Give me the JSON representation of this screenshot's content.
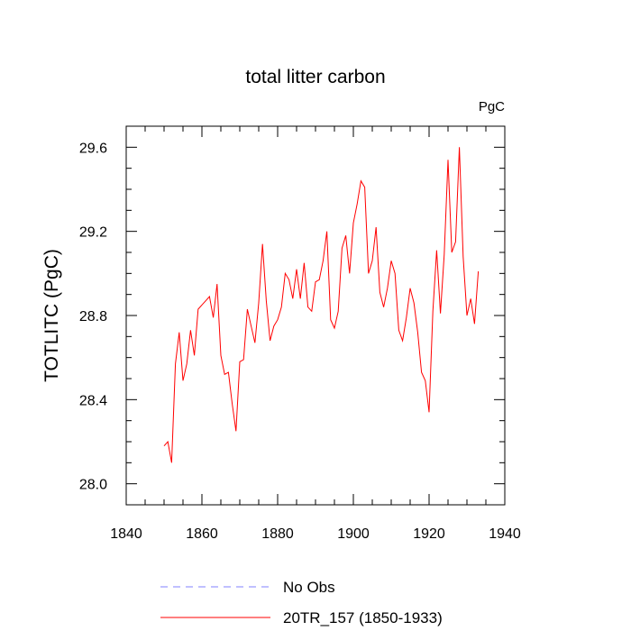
{
  "chart_data": {
    "type": "line",
    "title": "total litter carbon",
    "units_label": "PgC",
    "xlabel": "",
    "ylabel": "TOTLITC  (PgC)",
    "xlim": [
      1840,
      1940
    ],
    "ylim": [
      27.9,
      29.7
    ],
    "xticks": [
      1840,
      1860,
      1880,
      1900,
      1920,
      1940
    ],
    "xtick_labels": [
      "1840",
      "1860",
      "1880",
      "1900",
      "1920",
      "1940"
    ],
    "yticks": [
      28.0,
      28.4,
      28.8,
      29.2,
      29.6
    ],
    "ytick_labels": [
      "28.0",
      "28.4",
      "28.8",
      "29.2",
      "29.6"
    ],
    "grid": false,
    "legend_position": "bottom",
    "series": [
      {
        "name": "20TR_157 (1850-1933)",
        "color": "#ff0000",
        "style": "solid",
        "x": [
          1850,
          1851,
          1852,
          1853,
          1854,
          1855,
          1856,
          1857,
          1858,
          1859,
          1860,
          1861,
          1862,
          1863,
          1864,
          1865,
          1866,
          1867,
          1868,
          1869,
          1870,
          1871,
          1872,
          1873,
          1874,
          1875,
          1876,
          1877,
          1878,
          1879,
          1880,
          1881,
          1882,
          1883,
          1884,
          1885,
          1886,
          1887,
          1888,
          1889,
          1890,
          1891,
          1892,
          1893,
          1894,
          1895,
          1896,
          1897,
          1898,
          1899,
          1900,
          1901,
          1902,
          1903,
          1904,
          1905,
          1906,
          1907,
          1908,
          1909,
          1910,
          1911,
          1912,
          1913,
          1914,
          1915,
          1916,
          1917,
          1918,
          1919,
          1920,
          1921,
          1922,
          1923,
          1924,
          1925,
          1926,
          1927,
          1928,
          1929,
          1930,
          1931,
          1932,
          1933
        ],
        "values": [
          28.18,
          28.2,
          28.1,
          28.57,
          28.72,
          28.49,
          28.57,
          28.73,
          28.61,
          28.83,
          28.85,
          28.87,
          28.89,
          28.79,
          28.95,
          28.61,
          28.52,
          28.53,
          28.38,
          28.25,
          28.58,
          28.59,
          28.83,
          28.75,
          28.67,
          28.86,
          29.14,
          28.87,
          28.68,
          28.75,
          28.78,
          28.84,
          29.0,
          28.97,
          28.88,
          29.02,
          28.88,
          29.05,
          28.84,
          28.82,
          28.96,
          28.97,
          29.06,
          29.2,
          28.78,
          28.74,
          28.82,
          29.12,
          29.18,
          29.0,
          29.24,
          29.33,
          29.44,
          29.41,
          29.0,
          29.06,
          29.22,
          28.91,
          28.84,
          28.93,
          29.06,
          29.0,
          28.73,
          28.68,
          28.79,
          28.93,
          28.86,
          28.72,
          28.53,
          28.49,
          28.34,
          28.82,
          29.11,
          28.81,
          29.09,
          29.54,
          29.1,
          29.15,
          29.6,
          29.08,
          28.8,
          28.88,
          28.76,
          29.01
        ]
      },
      {
        "name": "No Obs",
        "color": "#8080ff",
        "style": "dashed",
        "x": [],
        "values": []
      }
    ]
  }
}
